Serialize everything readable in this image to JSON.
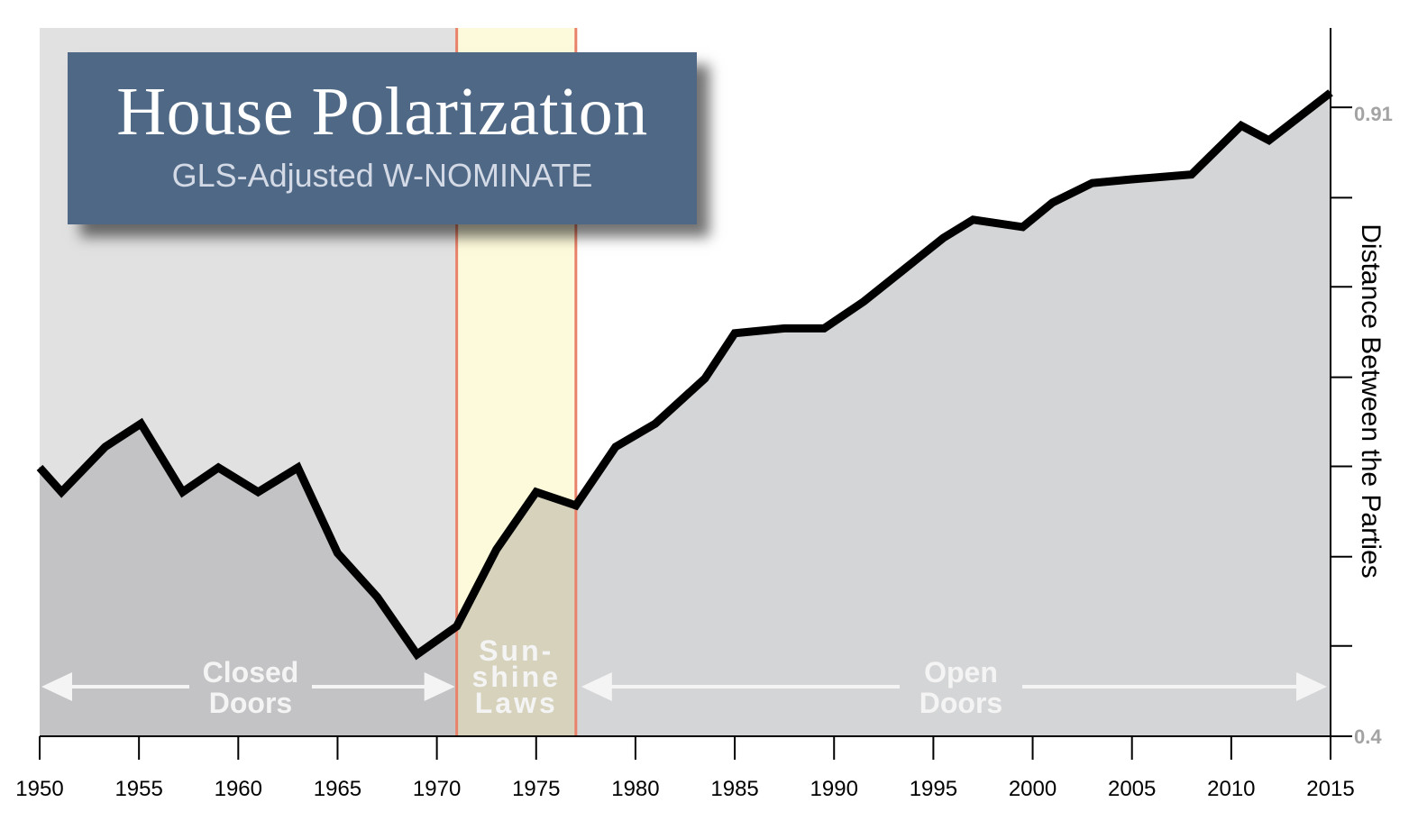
{
  "title": "House Polarization",
  "subtitle": "GLS-Adjusted W-NOMINATE",
  "colors": {
    "closed_bg": "#e1e1e1",
    "closed_fill": "#c3c3c6",
    "open_fill": "#d4d5d7",
    "sunshine_bg": "#fdfadb",
    "sunshine_fill": "#d6d2bc",
    "line": "#000000",
    "divider": "#e9826a",
    "title_box": "#4e6886",
    "region_label": "#f4f4f4"
  },
  "chart_data": {
    "type": "area",
    "title": "House Polarization",
    "subtitle": "GLS-Adjusted W-NOMINATE",
    "xlabel": "",
    "ylabel": "Distance Between the Parties",
    "xlim": [
      1950,
      2015
    ],
    "ylim": [
      0.4,
      0.98
    ],
    "y_axis_side": "right",
    "x_ticks": [
      1950,
      1955,
      1960,
      1965,
      1970,
      1975,
      1980,
      1985,
      1990,
      1995,
      2000,
      2005,
      2010,
      2015
    ],
    "y_ticks": [
      0.4,
      0.474,
      0.547,
      0.621,
      0.694,
      0.768,
      0.841,
      0.915
    ],
    "y_tick_labels": [
      {
        "value": 0.4,
        "label": "0.4"
      },
      {
        "value": 0.91,
        "label": "0.91"
      }
    ],
    "grid": false,
    "series": [
      {
        "x": [
          1950,
          1951.1,
          1953.3,
          1955.1,
          1957.2,
          1959,
          1961,
          1963,
          1965,
          1967,
          1969,
          1971,
          1973,
          1975,
          1977,
          1979,
          1981,
          1983.5,
          1985,
          1987.5,
          1989.5,
          1991.5,
          1993.5,
          1995.5,
          1997,
          1999.5,
          2001,
          2003,
          2005,
          2008,
          2010.5,
          2011.9,
          2015
        ],
        "y": [
          0.62,
          0.6,
          0.637,
          0.656,
          0.6,
          0.62,
          0.6,
          0.62,
          0.55,
          0.514,
          0.467,
          0.49,
          0.553,
          0.6,
          0.589,
          0.637,
          0.656,
          0.693,
          0.73,
          0.734,
          0.734,
          0.756,
          0.782,
          0.808,
          0.823,
          0.817,
          0.837,
          0.853,
          0.856,
          0.86,
          0.9,
          0.888,
          0.927
        ]
      }
    ],
    "regions": [
      {
        "label": [
          "Closed",
          "Doors"
        ],
        "from": 1950,
        "to": 1971
      },
      {
        "label": [
          "Sun-",
          "shine",
          "Laws"
        ],
        "from": 1971,
        "to": 1977
      },
      {
        "label": [
          "Open",
          "Doors"
        ],
        "from": 1977,
        "to": 2015
      }
    ]
  }
}
